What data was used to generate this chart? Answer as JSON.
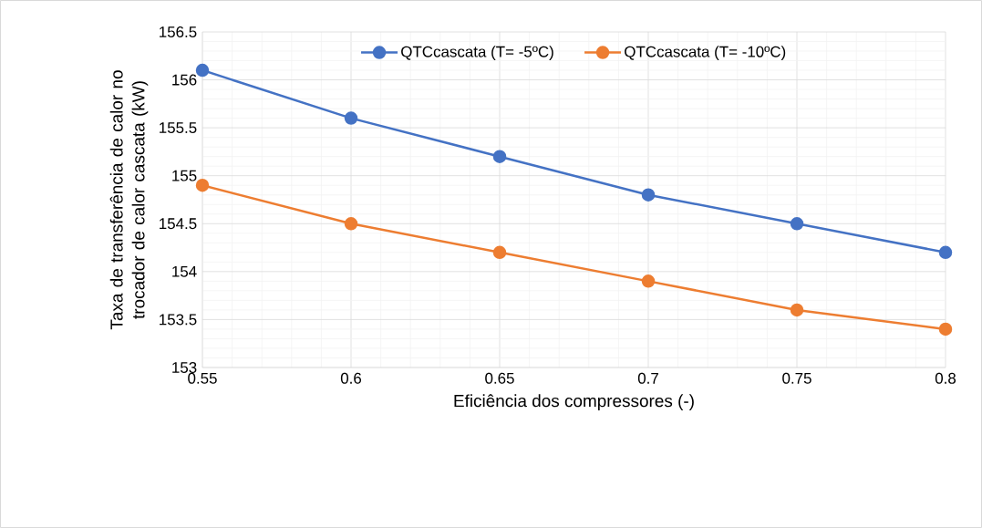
{
  "chart_data": {
    "type": "line",
    "xlabel": "Eficiência dos compressores (-)",
    "ylabel": "Taxa de transferência de calor no trocador de calor cascata (kW)",
    "x": [
      0.55,
      0.6,
      0.65,
      0.7,
      0.75,
      0.8
    ],
    "series": [
      {
        "name": "QTCcascata (T= -5ºC)",
        "color": "#4472c4",
        "values": [
          156.1,
          155.6,
          155.2,
          154.8,
          154.5,
          154.2
        ]
      },
      {
        "name": "QTCcascata (T= -10ºC)",
        "color": "#ed7d31",
        "values": [
          154.9,
          154.5,
          154.2,
          153.9,
          153.6,
          153.4
        ]
      }
    ],
    "xlim": [
      0.55,
      0.8
    ],
    "ylim": [
      153,
      156.5
    ],
    "xticks": [
      0.55,
      0.6,
      0.65,
      0.7,
      0.75,
      0.8
    ],
    "yticks": [
      153,
      153.5,
      154,
      154.5,
      155,
      155.5,
      156,
      156.5
    ],
    "grid": true,
    "legend": "top",
    "marker": "circle",
    "line_style": "solid"
  }
}
